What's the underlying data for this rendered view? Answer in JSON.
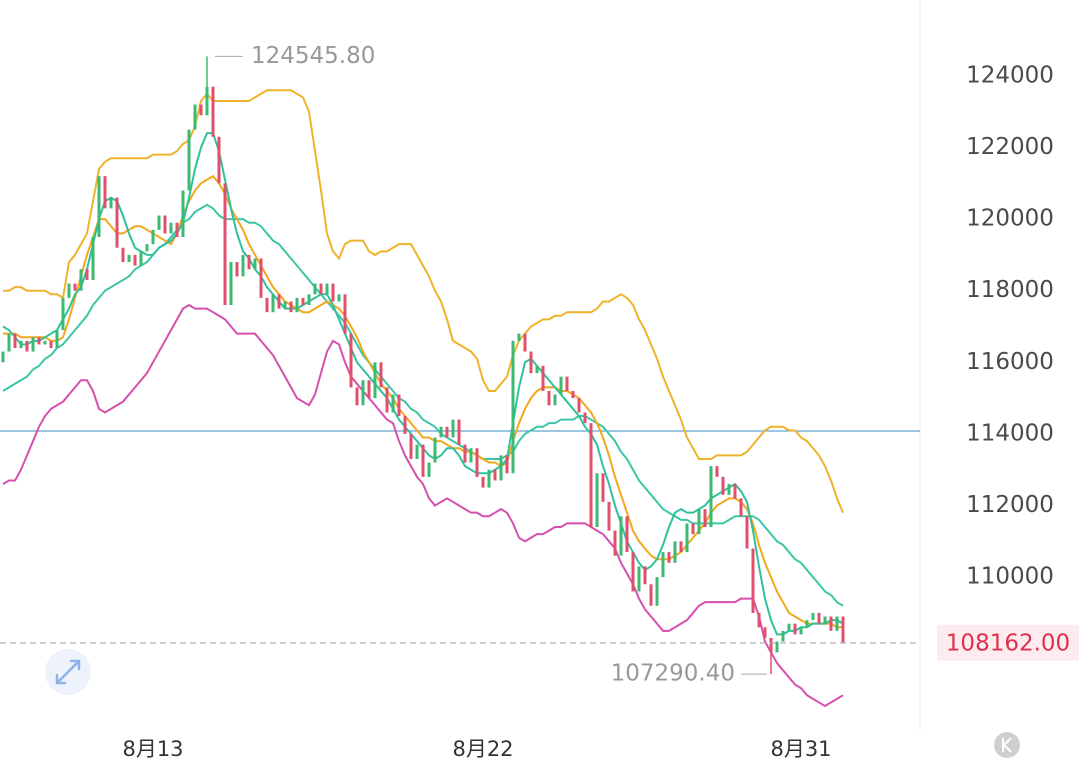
{
  "chart_data": {
    "type": "candlestick",
    "categories": [
      null,
      null,
      null,
      null,
      null,
      null,
      null,
      null,
      null,
      null,
      null,
      null,
      null,
      null,
      null,
      null,
      null,
      null,
      null,
      null,
      null,
      null,
      null,
      null,
      null,
      "8月13",
      null,
      null,
      null,
      null,
      null,
      null,
      null,
      null,
      null,
      null,
      null,
      null,
      null,
      null,
      null,
      null,
      null,
      null,
      null,
      null,
      null,
      null,
      null,
      null,
      null,
      null,
      null,
      null,
      null,
      null,
      null,
      null,
      null,
      null,
      null,
      null,
      null,
      null,
      null,
      null,
      null,
      null,
      null,
      null,
      null,
      null,
      null,
      null,
      null,
      null,
      null,
      null,
      null,
      null,
      "8月22",
      null,
      null,
      null,
      null,
      null,
      null,
      null,
      null,
      null,
      null,
      null,
      null,
      null,
      null,
      null,
      null,
      null,
      null,
      null,
      null,
      null,
      null,
      null,
      null,
      null,
      null,
      null,
      null,
      null,
      null,
      null,
      null,
      null,
      null,
      null,
      null,
      null,
      null,
      null,
      null,
      null,
      null,
      null,
      null,
      null,
      null,
      null,
      null,
      null,
      null,
      null,
      null,
      "8月31",
      null,
      null,
      null,
      null,
      null,
      null,
      null
    ],
    "open": [
      116000,
      116300,
      116800,
      116400,
      116600,
      116300,
      116700,
      116500,
      116600,
      116400,
      116900,
      117800,
      118200,
      118000,
      118600,
      118300,
      119500,
      121200,
      120300,
      120600,
      119200,
      118800,
      119000,
      118700,
      119100,
      119300,
      119700,
      120100,
      119600,
      119900,
      119500,
      120800,
      122500,
      123200,
      122900,
      123700,
      122300,
      121000,
      117600,
      118800,
      118400,
      119000,
      118600,
      118900,
      117800,
      117400,
      117900,
      117500,
      117700,
      117400,
      117800,
      117600,
      117900,
      118200,
      117900,
      118200,
      117700,
      117900,
      116800,
      115300,
      114800,
      115500,
      115000,
      116000,
      115300,
      114600,
      115100,
      114500,
      114000,
      113300,
      113700,
      112800,
      113200,
      113900,
      114200,
      113900,
      114400,
      113700,
      113200,
      113600,
      112800,
      112500,
      113000,
      112700,
      113400,
      112900,
      116600,
      116800,
      116300,
      115700,
      115900,
      115200,
      114800,
      115100,
      115600,
      115200,
      115000,
      114600,
      114300,
      111400,
      112900,
      112100,
      111300,
      110600,
      111700,
      110700,
      109600,
      110300,
      109800,
      109200,
      110000,
      110700,
      110400,
      111000,
      110700,
      111500,
      111200,
      111900,
      111400,
      113100,
      112800,
      112300,
      112600,
      112200,
      111700,
      110800,
      109000,
      108600,
      108300,
      107900,
      108200,
      108500,
      108700,
      108400,
      108600,
      108800,
      109000,
      108700,
      108900,
      108500,
      108900
    ],
    "close": [
      116300,
      116800,
      116400,
      116600,
      116300,
      116700,
      116500,
      116600,
      116400,
      116900,
      117800,
      118200,
      118000,
      118600,
      118300,
      119500,
      121200,
      120300,
      120600,
      119200,
      118800,
      119000,
      118700,
      119100,
      119300,
      119700,
      120100,
      119600,
      119900,
      119500,
      120800,
      122500,
      123200,
      122900,
      123700,
      122300,
      121000,
      117600,
      118800,
      118400,
      119000,
      118600,
      118900,
      117800,
      117400,
      117900,
      117500,
      117700,
      117400,
      117800,
      117600,
      117900,
      118200,
      117900,
      118200,
      117700,
      117900,
      116800,
      115300,
      114800,
      115500,
      115000,
      116000,
      115300,
      114600,
      115100,
      114500,
      114000,
      113300,
      113700,
      112800,
      113200,
      113900,
      114200,
      113900,
      114400,
      113700,
      113200,
      113600,
      112800,
      112500,
      113000,
      112700,
      113400,
      112900,
      116600,
      116800,
      116300,
      115700,
      115900,
      115200,
      114800,
      115100,
      115600,
      115200,
      115000,
      114600,
      114300,
      111400,
      112900,
      112100,
      111300,
      110600,
      111700,
      110700,
      109600,
      110300,
      109800,
      109200,
      110000,
      110700,
      110400,
      111000,
      110700,
      111500,
      111200,
      111900,
      111400,
      113100,
      112800,
      112300,
      112600,
      112200,
      111700,
      110800,
      109000,
      108600,
      108300,
      107900,
      108200,
      108500,
      108700,
      108400,
      108600,
      108800,
      109000,
      108700,
      108900,
      108500,
      108900,
      108162
    ],
    "up_color": "#3dba72",
    "down_color": "#e0506d",
    "lines": [
      {
        "color": "#d64fae",
        "values": [
          112600,
          112700,
          112700,
          113000,
          113400,
          113800,
          114200,
          114500,
          114700,
          114800,
          114900,
          115100,
          115300,
          115500,
          115500,
          115200,
          114700,
          114600,
          114700,
          114800,
          114900,
          115100,
          115300,
          115500,
          115700,
          116000,
          116300,
          116600,
          116900,
          117200,
          117500,
          117600,
          117500,
          117500,
          117500,
          117400,
          117300,
          117200,
          117000,
          116800,
          116800,
          116800,
          116800,
          116600,
          116400,
          116200,
          115900,
          115600,
          115300,
          115000,
          114900,
          114800,
          115100,
          115700,
          116300,
          116600,
          116500,
          116000,
          115600,
          115400,
          115200,
          115000,
          114800,
          114600,
          114400,
          114300,
          113800,
          113400,
          113100,
          112800,
          112600,
          112200,
          112000,
          112100,
          112200,
          112100,
          112000,
          111900,
          111800,
          111800,
          111700,
          111700,
          111800,
          111900,
          111800,
          111500,
          111100,
          111000,
          111100,
          111200,
          111200,
          111300,
          111400,
          111400,
          111500,
          111500,
          111500,
          111500,
          111400,
          111300,
          111200,
          111000,
          110800,
          110400,
          110100,
          109800,
          109400,
          109100,
          108900,
          108700,
          108500,
          108500,
          108600,
          108700,
          108800,
          109000,
          109200,
          109300,
          109300,
          109300,
          109300,
          109300,
          109300,
          109400,
          109400,
          109400,
          108900,
          108200,
          107900,
          107600,
          107400,
          107200,
          107000,
          106900,
          106700,
          106600,
          106500,
          106400,
          106500,
          106600,
          106700
        ]
      },
      {
        "color": "#eeb32a",
        "values": [
          118000,
          118000,
          118100,
          118100,
          118000,
          118000,
          118000,
          118000,
          117900,
          117900,
          117800,
          118800,
          119000,
          119300,
          119600,
          120500,
          121400,
          121600,
          121700,
          121700,
          121700,
          121700,
          121700,
          121700,
          121700,
          121800,
          121800,
          121800,
          121800,
          121900,
          122100,
          122200,
          122600,
          123300,
          123500,
          123300,
          123300,
          123300,
          123300,
          123300,
          123300,
          123300,
          123400,
          123500,
          123600,
          123600,
          123600,
          123600,
          123600,
          123500,
          123400,
          123000,
          121900,
          120800,
          119600,
          119100,
          118900,
          119300,
          119400,
          119400,
          119400,
          119100,
          119000,
          119100,
          119100,
          119200,
          119300,
          119300,
          119300,
          119000,
          118700,
          118400,
          118000,
          117700,
          117200,
          116600,
          116500,
          116400,
          116300,
          116100,
          115500,
          115200,
          115200,
          115400,
          115600,
          116200,
          116600,
          116800,
          117000,
          117100,
          117200,
          117200,
          117300,
          117300,
          117400,
          117400,
          117400,
          117400,
          117400,
          117500,
          117700,
          117700,
          117800,
          117900,
          117800,
          117600,
          117200,
          116900,
          116500,
          116100,
          115600,
          115200,
          114800,
          114400,
          113900,
          113600,
          113300,
          113300,
          113300,
          113400,
          113400,
          113400,
          113400,
          113400,
          113500,
          113700,
          113900,
          114100,
          114200,
          114200,
          114200,
          114100,
          114100,
          113900,
          113800,
          113600,
          113400,
          113100,
          112700,
          112200,
          111800
        ]
      },
      {
        "color": "#3cc6a6",
        "values": [
          115200,
          115300,
          115400,
          115500,
          115600,
          115800,
          115900,
          116100,
          116200,
          116400,
          116500,
          116700,
          116900,
          117100,
          117300,
          117600,
          117800,
          118000,
          118100,
          118200,
          118300,
          118400,
          118600,
          118700,
          118800,
          119000,
          119200,
          119300,
          119500,
          119700,
          119900,
          120000,
          120200,
          120300,
          120400,
          120300,
          120100,
          120000,
          120000,
          120000,
          120000,
          119900,
          119900,
          119800,
          119600,
          119400,
          119300,
          119100,
          118900,
          118700,
          118500,
          118300,
          118100,
          117900,
          117700,
          117500,
          117300,
          117100,
          116800,
          116500,
          116200,
          116000,
          115800,
          115600,
          115400,
          115200,
          115000,
          114900,
          114700,
          114600,
          114400,
          114300,
          114200,
          114000,
          113900,
          113800,
          113700,
          113600,
          113500,
          113400,
          113300,
          113300,
          113300,
          113300,
          113400,
          113500,
          113800,
          114000,
          114100,
          114200,
          114200,
          114300,
          114300,
          114400,
          114400,
          114400,
          114500,
          114500,
          114400,
          114300,
          114200,
          114000,
          113800,
          113500,
          113300,
          113000,
          112700,
          112500,
          112300,
          112100,
          111900,
          111800,
          111700,
          111600,
          111600,
          111500,
          111500,
          111500,
          111500,
          111500,
          111500,
          111600,
          111700,
          111700,
          111700,
          111700,
          111600,
          111400,
          111200,
          111000,
          110900,
          110700,
          110500,
          110400,
          110200,
          110000,
          109800,
          109600,
          109500,
          109300,
          109200
        ]
      },
      {
        "color": "#f2a81d",
        "values": [
          116800,
          116800,
          116800,
          116700,
          116700,
          116700,
          116700,
          116700,
          116600,
          116600,
          116700,
          117200,
          117800,
          118400,
          119000,
          119500,
          120000,
          120000,
          119800,
          119600,
          119600,
          119700,
          119800,
          119800,
          119700,
          119600,
          119500,
          119400,
          119300,
          119600,
          120100,
          120500,
          120800,
          121000,
          121100,
          121200,
          121000,
          120700,
          120300,
          120000,
          119700,
          119300,
          119000,
          118700,
          118400,
          118100,
          117900,
          117700,
          117600,
          117500,
          117400,
          117400,
          117500,
          117600,
          117700,
          117600,
          117500,
          117300,
          117000,
          116700,
          116300,
          116000,
          115700,
          115400,
          115200,
          115000,
          114700,
          114500,
          114300,
          114100,
          113900,
          113900,
          113800,
          113800,
          113700,
          113600,
          113600,
          113500,
          113500,
          113400,
          113300,
          113200,
          113200,
          113100,
          113200,
          113800,
          114300,
          114700,
          115000,
          115200,
          115300,
          115300,
          115300,
          115200,
          115200,
          115100,
          115000,
          114800,
          114600,
          114300,
          113900,
          113400,
          112800,
          112300,
          111800,
          111300,
          111000,
          110800,
          110600,
          110500,
          110500,
          110500,
          110600,
          110700,
          110900,
          111100,
          111300,
          111500,
          111800,
          112000,
          112100,
          112200,
          112200,
          112100,
          111900,
          111500,
          110900,
          110400,
          110000,
          109600,
          109300,
          109000,
          108900,
          108800,
          108700,
          108700,
          108700,
          108700,
          108700,
          108600,
          108600
        ]
      },
      {
        "color": "#2fc09e",
        "values": [
          117000,
          116900,
          116700,
          116500,
          116500,
          116600,
          116600,
          116700,
          116800,
          116900,
          117200,
          117500,
          117900,
          118100,
          118600,
          119300,
          120000,
          120500,
          120600,
          120500,
          120100,
          119600,
          119200,
          119100,
          119000,
          119000,
          119200,
          119300,
          119400,
          119600,
          119900,
          120600,
          121400,
          122000,
          122400,
          122400,
          121900,
          121100,
          120300,
          119600,
          119100,
          118900,
          118600,
          118400,
          118100,
          117900,
          117700,
          117500,
          117500,
          117500,
          117600,
          117700,
          117800,
          117900,
          117900,
          117600,
          117200,
          116800,
          116400,
          116000,
          115800,
          115600,
          115400,
          115200,
          115000,
          114700,
          114400,
          114200,
          114000,
          113800,
          113600,
          113400,
          113300,
          113400,
          113600,
          113600,
          113400,
          113100,
          113000,
          112900,
          112900,
          112900,
          113000,
          113100,
          113300,
          114300,
          115300,
          116000,
          116100,
          115900,
          115700,
          115500,
          115300,
          115100,
          114900,
          114700,
          114500,
          114200,
          114000,
          113700,
          113100,
          112600,
          112000,
          111500,
          111000,
          110700,
          110400,
          110200,
          110300,
          110500,
          110900,
          111400,
          111800,
          111900,
          111800,
          111800,
          111900,
          112000,
          112200,
          112300,
          112400,
          112500,
          112600,
          112400,
          112100,
          111300,
          110300,
          109400,
          108800,
          108400,
          108400,
          108500,
          108500,
          108600,
          108600,
          108700,
          108700,
          108700,
          108800,
          108800,
          108700
        ]
      }
    ],
    "ylim": [
      105730,
      126120
    ],
    "yticks": [
      110000,
      112000,
      114000,
      116000,
      118000,
      120000,
      122000,
      124000
    ],
    "high_label": {
      "value": 124545.8,
      "label": "124545.80"
    },
    "low_label": {
      "value": 107290.4,
      "label": "107290.40"
    },
    "last_price": {
      "value": 108162,
      "label": "108162.00"
    },
    "reference_line": {
      "value": 114080,
      "color": "#3a8ec9"
    }
  }
}
